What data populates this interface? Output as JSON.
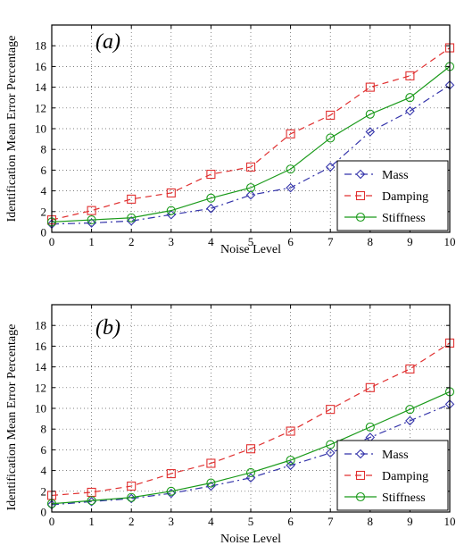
{
  "chart_data": [
    {
      "type": "line",
      "panel_label": "(a)",
      "xlabel": "Noise Level",
      "ylabel": "Identification Mean Error Percentage",
      "x": [
        0,
        1,
        2,
        3,
        4,
        5,
        6,
        7,
        8,
        9,
        10
      ],
      "xlim": [
        0,
        10
      ],
      "ylim": [
        0,
        20
      ],
      "xticks": [
        "0",
        "1",
        "2",
        "3",
        "4",
        "5",
        "6",
        "7",
        "8",
        "9",
        "10"
      ],
      "yticks": [
        "0",
        "2",
        "4",
        "6",
        "8",
        "10",
        "12",
        "14",
        "16",
        "18"
      ],
      "grid": true,
      "legend_position": "bottom-right",
      "series": [
        {
          "name": "Mass",
          "color": "#3333aa",
          "marker": "diamond",
          "dash": "8,4,2,4",
          "values": [
            0.8,
            0.9,
            1.1,
            1.7,
            2.3,
            3.6,
            4.3,
            6.3,
            9.7,
            11.7,
            14.2
          ]
        },
        {
          "name": "Damping",
          "color": "#e03030",
          "marker": "square",
          "dash": "7,5",
          "values": [
            1.2,
            2.1,
            3.2,
            3.8,
            5.6,
            6.3,
            9.5,
            11.3,
            14.0,
            15.1,
            17.8
          ]
        },
        {
          "name": "Stiffness",
          "color": "#1a9a1a",
          "marker": "circle",
          "dash": "",
          "values": [
            1.0,
            1.2,
            1.4,
            2.1,
            3.3,
            4.3,
            6.1,
            9.1,
            11.4,
            13.0,
            16.0
          ]
        }
      ]
    },
    {
      "type": "line",
      "panel_label": "(b)",
      "xlabel": "Noise Level",
      "ylabel": "Identification Mean Error Percentage",
      "x": [
        0,
        1,
        2,
        3,
        4,
        5,
        6,
        7,
        8,
        9,
        10
      ],
      "xlim": [
        0,
        10
      ],
      "ylim": [
        0,
        20
      ],
      "xticks": [
        "0",
        "1",
        "2",
        "3",
        "4",
        "5",
        "6",
        "7",
        "8",
        "9",
        "10"
      ],
      "yticks": [
        "0",
        "2",
        "4",
        "6",
        "8",
        "10",
        "12",
        "14",
        "16",
        "18"
      ],
      "grid": true,
      "legend_position": "bottom-right",
      "series": [
        {
          "name": "Mass",
          "color": "#3333aa",
          "marker": "diamond",
          "dash": "8,4,2,4",
          "values": [
            0.7,
            1.0,
            1.3,
            1.8,
            2.5,
            3.3,
            4.5,
            5.7,
            7.2,
            8.8,
            10.4
          ]
        },
        {
          "name": "Damping",
          "color": "#e03030",
          "marker": "square",
          "dash": "7,5",
          "values": [
            1.6,
            1.9,
            2.5,
            3.7,
            4.7,
            6.1,
            7.8,
            9.9,
            12.0,
            13.8,
            16.3
          ]
        },
        {
          "name": "Stiffness",
          "color": "#1a9a1a",
          "marker": "circle",
          "dash": "",
          "values": [
            0.8,
            1.1,
            1.4,
            2.0,
            2.8,
            3.8,
            5.0,
            6.5,
            8.2,
            9.9,
            11.6
          ]
        }
      ]
    }
  ]
}
